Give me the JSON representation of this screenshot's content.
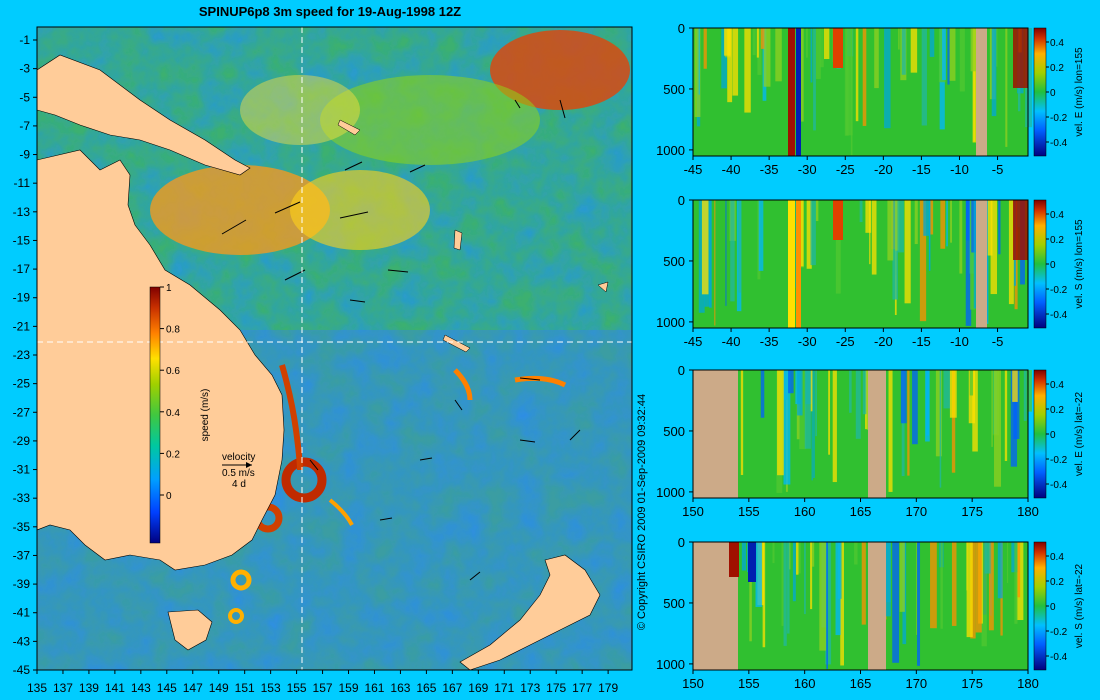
{
  "title": "SPINUP6p8 3m speed for 19-Aug-1998 12Z",
  "copyright": "© Copyright CSIRO 2009   01-Sep-2009 09:32:44",
  "colors": {
    "background": "#00ccff",
    "land": "#ffcc99",
    "section_land": "#ccaa88"
  },
  "map": {
    "lon_ticks": [
      "135",
      "137",
      "139",
      "141",
      "143",
      "145",
      "147",
      "149",
      "151",
      "153",
      "155",
      "157",
      "159",
      "161",
      "163",
      "165",
      "167",
      "169",
      "171",
      "173",
      "175",
      "177",
      "179"
    ],
    "lat_ticks": [
      "-1",
      "-3",
      "-5",
      "-7",
      "-9",
      "-11",
      "-13",
      "-15",
      "-17",
      "-19",
      "-21",
      "-23",
      "-25",
      "-27",
      "-29",
      "-31",
      "-33",
      "-35",
      "-37",
      "-39",
      "-41",
      "-43",
      "-45"
    ],
    "section_lon": 155,
    "section_lat": -22,
    "velocity_key": {
      "label": "velocity",
      "speed": "0.5 m/s",
      "duration": "4 d"
    }
  },
  "speed_colorbar": {
    "label": "speed (m/s)",
    "ticks": [
      "1",
      "0.8",
      "0.6",
      "0.4",
      "0.2",
      "0"
    ],
    "range": [
      -0.2,
      1
    ]
  },
  "chart_data": [
    {
      "type": "heatmap",
      "panel": "east-lon155",
      "colorbar_label": "vel. E (m/s) lon=155",
      "x_ticks": [
        "-45",
        "-40",
        "-35",
        "-30",
        "-25",
        "-20",
        "-15",
        "-10",
        "-5"
      ],
      "y_ticks": [
        "0",
        "500",
        "1000"
      ],
      "cbar_ticks": [
        "0.4",
        "0.2",
        "0",
        "-0.2",
        "-0.4"
      ],
      "xlim": [
        -45,
        -1
      ],
      "ylim": [
        1050,
        0
      ]
    },
    {
      "type": "heatmap",
      "panel": "south-lon155",
      "colorbar_label": "vel. S (m/s) lon=155",
      "x_ticks": [
        "-45",
        "-40",
        "-35",
        "-30",
        "-25",
        "-20",
        "-15",
        "-10",
        "-5"
      ],
      "y_ticks": [
        "0",
        "500",
        "1000"
      ],
      "cbar_ticks": [
        "0.4",
        "0.2",
        "0",
        "-0.2",
        "-0.4"
      ],
      "xlim": [
        -45,
        -1
      ],
      "ylim": [
        1050,
        0
      ]
    },
    {
      "type": "heatmap",
      "panel": "east-lat22",
      "colorbar_label": "vel. E (m/s) lat=-22",
      "x_ticks": [
        "150",
        "155",
        "160",
        "165",
        "170",
        "175",
        "180"
      ],
      "y_ticks": [
        "0",
        "500",
        "1000"
      ],
      "cbar_ticks": [
        "0.4",
        "0.2",
        "0",
        "-0.2",
        "-0.4"
      ],
      "xlim": [
        150,
        180
      ],
      "ylim": [
        1050,
        0
      ]
    },
    {
      "type": "heatmap",
      "panel": "south-lat22",
      "colorbar_label": "vel. S (m/s) lat=-22",
      "x_ticks": [
        "150",
        "155",
        "160",
        "165",
        "170",
        "175",
        "180"
      ],
      "y_ticks": [
        "0",
        "500",
        "1000"
      ],
      "cbar_ticks": [
        "0.4",
        "0.2",
        "0",
        "-0.2",
        "-0.4"
      ],
      "xlim": [
        150,
        180
      ],
      "ylim": [
        1050,
        0
      ]
    }
  ]
}
